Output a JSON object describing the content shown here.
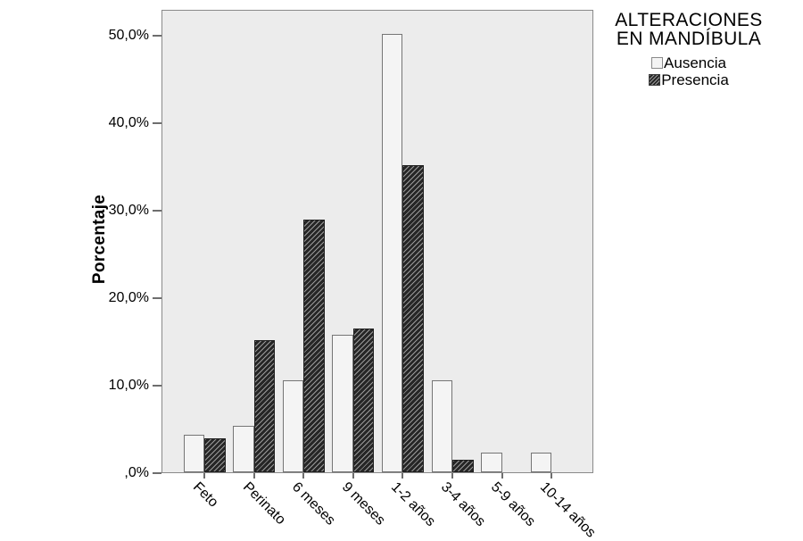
{
  "chart_data": {
    "type": "bar",
    "title": "",
    "ylabel": "Porcentaje",
    "xlabel": "",
    "categories": [
      "Feto",
      "Perinato",
      "6 meses",
      "9 meses",
      "1-2 años",
      "3-4 años",
      "5-9 años",
      "10-14 años"
    ],
    "series": [
      {
        "name": "Ausencia",
        "style": "plain",
        "values": [
          4.2,
          5.2,
          10.4,
          15.6,
          50.0,
          10.4,
          2.1,
          2.1
        ]
      },
      {
        "name": "Presencia",
        "style": "hatched",
        "values": [
          3.8,
          15.0,
          28.8,
          16.3,
          35.0,
          1.3,
          0.0,
          0.0
        ]
      }
    ],
    "y_ticks": [
      {
        "value": 0,
        "label": ",0%"
      },
      {
        "value": 10,
        "label": "10,0%"
      },
      {
        "value": 20,
        "label": "20,0%"
      },
      {
        "value": 30,
        "label": "30,0%"
      },
      {
        "value": 40,
        "label": "40,0%"
      },
      {
        "value": 50,
        "label": "50,0%"
      }
    ],
    "ylim": [
      0,
      52.9
    ],
    "grid": false,
    "legend": {
      "title_lines": [
        "ALTERACIONES",
        "EN MANDÍBULA"
      ],
      "position": "top-right-outside",
      "items": [
        "Ausencia",
        "Presencia"
      ]
    }
  },
  "colors": {
    "text": "#000000",
    "plot_background": "#ececec",
    "plot_border": "#8a8a8a",
    "bar_plain_fill": "#f4f4f4",
    "bar_plain_border": "#757575",
    "bar_hatched_base": "#262626",
    "bar_hatched_line": "#9a9a9a"
  }
}
